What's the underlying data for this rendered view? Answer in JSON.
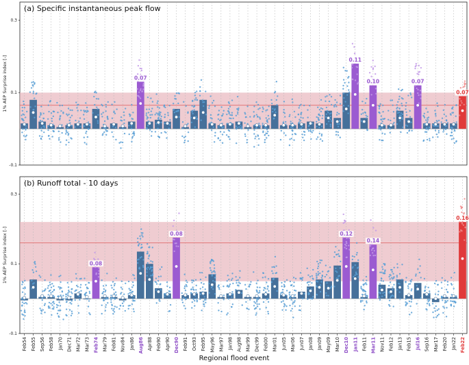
{
  "figure": {
    "xlabel": "Regional flood event",
    "colors": {
      "bar": "#46709a",
      "bar_purple": "#9b5bd1",
      "bar_red": "#e03a3a",
      "dots": "#5aa0d6",
      "band": "#e8b7bd",
      "ref_line": "#e06a6a",
      "zero_line": "#9a9a9a",
      "vline": "#b9b9b9"
    }
  },
  "chart_data": [
    {
      "type": "bar",
      "title": "(a) Specific instantaneous peak flow",
      "ylabel": "1% AEP Surprise index [-]",
      "ylim": [
        -0.1,
        0.35
      ],
      "yticks": [
        -0.1,
        0.1,
        0.3
      ],
      "ytick_labels": [
        "-0.1",
        "0.1",
        "0.3"
      ],
      "band": [
        0.0,
        0.1
      ],
      "ref_line": 0.065,
      "categories": [
        "Feb54",
        "Feb55",
        "Sep56",
        "Feb58",
        "Jan70",
        "Dec71",
        "Mar72",
        "Mar73",
        "Feb74",
        "Mar79",
        "Feb81",
        "Nov84",
        "Jan86",
        "Aug86",
        "Apr88",
        "Feb90",
        "Apr90",
        "Dec90",
        "Feb91",
        "Oct93",
        "Feb95",
        "May96",
        "Mar97",
        "Jan98",
        "Aug98",
        "Mar99",
        "Dec99",
        "Feb00",
        "Mar01",
        "Jun05",
        "Mar06",
        "Jun07",
        "Jan08",
        "Jan09",
        "May09",
        "Mar10",
        "Dec10",
        "Jan11",
        "Feb11",
        "Mar11",
        "Nov11",
        "Feb12",
        "Jan13",
        "Feb15",
        "Jul16",
        "Sep16",
        "Mar17",
        "Feb20",
        "Jan22",
        "Feb22"
      ],
      "values": [
        0.015,
        0.08,
        0.02,
        0.01,
        0.005,
        0.01,
        0.015,
        0.015,
        0.055,
        0.005,
        0.015,
        0.005,
        0.02,
        0.13,
        0.02,
        0.025,
        0.02,
        0.055,
        0.005,
        0.05,
        0.08,
        0.015,
        0.01,
        0.015,
        0.02,
        0.005,
        0.01,
        0.01,
        0.065,
        0.01,
        0.01,
        0.015,
        0.02,
        0.015,
        0.05,
        0.03,
        0.1,
        0.18,
        0.03,
        0.12,
        0.01,
        0.01,
        0.05,
        0.03,
        0.12,
        0.015,
        0.015,
        0.015,
        0.015,
        0.09
      ],
      "labeled": {
        "Aug86": "0.07",
        "Jan11": "0.11",
        "Mar11": "0.10",
        "Jul16": "0.07",
        "Feb22": "0.07"
      }
    },
    {
      "type": "bar",
      "title": "(b) Runoff total - 10 days",
      "ylabel": "1% AEP Surprise index [-]",
      "ylim": [
        -0.1,
        0.35
      ],
      "yticks": [
        -0.1,
        0.1,
        0.3
      ],
      "ytick_labels": [
        "-0.1",
        "0.1",
        "0.3"
      ],
      "band": [
        0.05,
        0.22
      ],
      "ref_line": 0.16,
      "categories": [
        "Feb54",
        "Feb55",
        "Sep56",
        "Feb58",
        "Jan70",
        "Dec71",
        "Mar72",
        "Mar73",
        "Feb74",
        "Mar79",
        "Feb81",
        "Nov84",
        "Jan86",
        "Aug86",
        "Apr88",
        "Feb90",
        "Apr90",
        "Dec90",
        "Feb91",
        "Oct93",
        "Feb95",
        "May96",
        "Mar97",
        "Jan98",
        "Aug98",
        "Mar99",
        "Dec99",
        "Feb00",
        "Mar01",
        "Jun05",
        "Mar06",
        "Jun07",
        "Jan08",
        "Jan09",
        "May09",
        "Mar10",
        "Dec10",
        "Jan11",
        "Feb11",
        "Mar11",
        "Nov11",
        "Feb12",
        "Jan13",
        "Feb15",
        "Jul16",
        "Sep16",
        "Mar17",
        "Feb20",
        "Jan22",
        "Feb22"
      ],
      "values": [
        -0.005,
        0.055,
        0.005,
        0.005,
        -0.005,
        -0.005,
        0.015,
        0.0,
        0.09,
        0.005,
        0.005,
        -0.005,
        0.01,
        0.135,
        0.1,
        0.03,
        0.015,
        0.175,
        0.01,
        0.015,
        0.02,
        0.07,
        0.005,
        0.015,
        0.025,
        0.005,
        0.005,
        0.015,
        0.06,
        0.01,
        0.005,
        0.02,
        0.035,
        0.055,
        0.05,
        0.095,
        0.175,
        0.105,
        0.005,
        0.155,
        0.04,
        0.03,
        0.055,
        0.01,
        0.045,
        0.015,
        -0.01,
        0.005,
        0.005,
        0.22
      ],
      "labeled": {
        "Feb74": "0.08",
        "Dec90": "0.08",
        "Dec10": "0.12",
        "Mar11": "0.14",
        "Feb22": "0.16"
      }
    }
  ],
  "highlights": {
    "purple": [
      "Feb74",
      "Aug86",
      "Dec90",
      "Dec10",
      "Jan11",
      "Mar11",
      "Jul16"
    ],
    "red": [
      "Feb22"
    ]
  }
}
